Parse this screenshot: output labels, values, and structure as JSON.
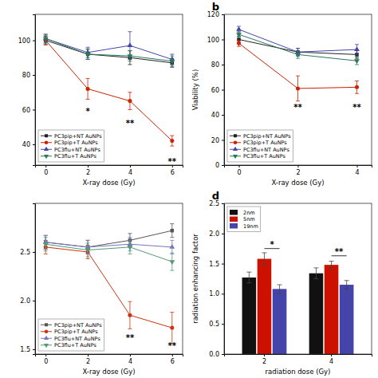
{
  "chart_data": [
    {
      "type": "line",
      "xlabel": "X-ray dose (Gy)",
      "x": [
        0,
        2,
        4,
        6
      ],
      "xlim": [
        -0.5,
        6.5
      ],
      "xticks": [
        0,
        2,
        4,
        6
      ],
      "ylim": [
        28,
        115
      ],
      "yticks": [
        40,
        60,
        80,
        100
      ],
      "legend": "lower left",
      "series": [
        {
          "name": "PC3pip+NT AuNPs",
          "color": "#222222",
          "marker": "square",
          "line_style": "solid",
          "values": [
            100,
            92,
            90,
            87
          ],
          "errors": [
            2.5,
            3,
            4,
            2.5
          ]
        },
        {
          "name": "PC3pip+T AuNPs",
          "color": "#cc2200",
          "marker": "circle",
          "line_style": "solid",
          "values": [
            100,
            72,
            65,
            42
          ],
          "errors": [
            2.5,
            6,
            5,
            3
          ]
        },
        {
          "name": "PC3flu+NT AuNPs",
          "color": "#4444aa",
          "marker": "triangle-up",
          "line_style": "solid",
          "values": [
            101,
            93,
            97,
            89
          ],
          "errors": [
            2.5,
            3,
            8,
            3
          ]
        },
        {
          "name": "PC3flu+T AuNPs",
          "color": "#2a7a5a",
          "marker": "triangle-down",
          "line_style": "solid",
          "values": [
            101,
            92,
            91,
            88
          ],
          "errors": [
            2.5,
            3,
            3,
            3
          ]
        }
      ],
      "annotations": [
        {
          "x": 2,
          "y": 57,
          "text": "*"
        },
        {
          "x": 4,
          "y": 50,
          "text": "**"
        },
        {
          "x": 6,
          "y": 28,
          "text": "**"
        }
      ]
    },
    {
      "type": "line",
      "title": "b",
      "xlabel": "X-ray dose (Gy)",
      "ylabel": "Viability (%)",
      "x": [
        0,
        2,
        4
      ],
      "xlim": [
        -0.5,
        4.5
      ],
      "xticks": [
        0,
        2,
        4
      ],
      "ylim": [
        0,
        120
      ],
      "yticks": [
        0,
        20,
        40,
        60,
        80,
        100,
        120
      ],
      "legend": "lower left",
      "series": [
        {
          "name": "PC3pip+NT AuNPs",
          "color": "#222222",
          "marker": "square",
          "line_style": "solid",
          "values": [
            100,
            90,
            88
          ],
          "errors": [
            2.5,
            3,
            3
          ]
        },
        {
          "name": "PC3pip+T AuNPs",
          "color": "#cc2200",
          "marker": "circle",
          "line_style": "solid",
          "values": [
            97,
            61,
            62
          ],
          "errors": [
            2.5,
            10,
            5
          ]
        },
        {
          "name": "PC3flu+NT AuNPs",
          "color": "#4444aa",
          "marker": "triangle-up",
          "line_style": "solid",
          "values": [
            108,
            90,
            92
          ],
          "errors": [
            2.5,
            3,
            4
          ]
        },
        {
          "name": "PC3flu+T AuNPs",
          "color": "#2a7a5a",
          "marker": "triangle-down",
          "line_style": "solid",
          "values": [
            104,
            88,
            83
          ],
          "errors": [
            2.5,
            3,
            3
          ]
        }
      ],
      "annotations": [
        {
          "x": 2,
          "y": 43,
          "text": "**"
        },
        {
          "x": 4,
          "y": 43,
          "text": "**"
        }
      ]
    },
    {
      "type": "line",
      "xlabel": "X-ray dose (Gy)",
      "x": [
        0,
        2,
        4,
        6
      ],
      "xlim": [
        -0.5,
        6.5
      ],
      "xticks": [
        0,
        2,
        4,
        6
      ],
      "ylim": [
        1.45,
        3.0
      ],
      "yticks": [
        1.5,
        {
          "value": 2.0,
          "label": "2.0"
        },
        2.5
      ],
      "legend": "lower left",
      "series": [
        {
          "name": "PC3pip+NT AuNPs",
          "color": "#555555",
          "marker": "square",
          "line_style": "solid",
          "values": [
            2.6,
            2.55,
            2.62,
            2.72
          ],
          "errors": [
            0.07,
            0.07,
            0.07,
            0.07
          ]
        },
        {
          "name": "PC3pip+T AuNPs",
          "color": "#cc3311",
          "marker": "circle",
          "line_style": "solid",
          "values": [
            2.55,
            2.5,
            1.85,
            1.72
          ],
          "errors": [
            0.07,
            0.07,
            0.14,
            0.16
          ]
        },
        {
          "name": "PC3flu+NT AuNPs",
          "color": "#7777bb",
          "marker": "triangle-up",
          "line_style": "solid",
          "values": [
            2.6,
            2.55,
            2.58,
            2.55
          ],
          "errors": [
            0.07,
            0.07,
            0.07,
            0.07
          ]
        },
        {
          "name": "PC3flu+T AuNPs",
          "color": "#559977",
          "marker": "triangle-down",
          "line_style": "solid",
          "values": [
            2.58,
            2.52,
            2.55,
            2.4
          ],
          "errors": [
            0.07,
            0.07,
            0.07,
            0.09
          ]
        }
      ],
      "annotations": [
        {
          "x": 4,
          "y": 1.58,
          "text": "**"
        },
        {
          "x": 6,
          "y": 1.5,
          "text": "**"
        }
      ]
    },
    {
      "type": "bar",
      "title": "d",
      "xlabel": "radiation dose (Gy)",
      "ylabel": "radiation enhancing factor",
      "categories": [
        "2",
        "4"
      ],
      "ylim": [
        0.0,
        2.5
      ],
      "yticks": [
        {
          "value": 0.0,
          "label": "0.0"
        },
        0.5,
        {
          "value": 1.0,
          "label": "1.0"
        },
        1.5,
        {
          "value": 2.0,
          "label": "2.0"
        },
        2.5
      ],
      "legend": "upper left",
      "series": [
        {
          "name": "2nm",
          "color": "#111111",
          "values": [
            1.27,
            1.34
          ],
          "errors": [
            0.09,
            0.09
          ]
        },
        {
          "name": "5nm",
          "color": "#cc1100",
          "values": [
            1.58,
            1.48
          ],
          "errors": [
            0.1,
            0.06
          ]
        },
        {
          "name": "19nm",
          "color": "#4444aa",
          "values": [
            1.08,
            1.15
          ],
          "errors": [
            0.07,
            0.07
          ]
        }
      ],
      "annotations": [
        {
          "category": "2",
          "from": "5nm",
          "to": "19nm",
          "y": 1.75,
          "text": "*"
        },
        {
          "category": "4",
          "from": "5nm",
          "to": "19nm",
          "y": 1.63,
          "text": "**"
        }
      ]
    }
  ]
}
